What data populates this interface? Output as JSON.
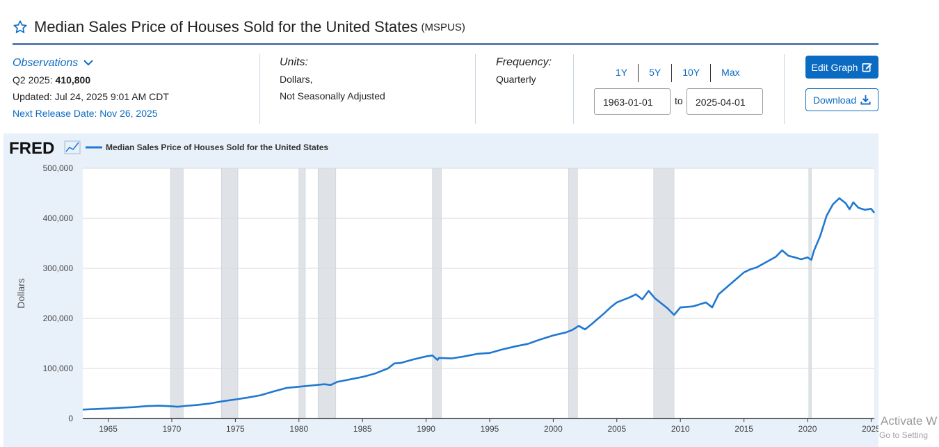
{
  "header": {
    "title": "Median Sales Price of Houses Sold for the United States",
    "series_code": "(MSPUS)"
  },
  "observations": {
    "label": "Observations",
    "period": "Q2 2025:",
    "value": "410,800",
    "updated": "Updated: Jul 24, 2025 9:01 AM CDT",
    "next_release": "Next Release Date: Nov 26, 2025"
  },
  "units": {
    "label": "Units:",
    "line1": "Dollars,",
    "line2": "Not Seasonally Adjusted"
  },
  "frequency": {
    "label": "Frequency:",
    "value": "Quarterly"
  },
  "range": {
    "links": [
      "1Y",
      "5Y",
      "10Y",
      "Max"
    ],
    "start": "1963-01-01",
    "to_label": "to",
    "end": "2025-04-01"
  },
  "buttons": {
    "edit_graph": "Edit Graph",
    "download": "Download"
  },
  "watermark": {
    "line1": "Activate W",
    "line2": "Go to Setting"
  },
  "colors": {
    "line": "#1f78d1",
    "recession": "#dfe3e8",
    "accent": "#0b6bc2"
  },
  "chart_data": {
    "type": "line",
    "logo": "FRED",
    "title": "Median Sales Price of Houses Sold for the United States",
    "legend": [
      {
        "name": "Median Sales Price of Houses Sold for the United States",
        "color": "#1f78d1"
      }
    ],
    "xlabel": "",
    "ylabel": "Dollars",
    "xlim": [
      1963.0,
      2025.25
    ],
    "ylim": [
      0,
      500000
    ],
    "x_ticks": [
      1965,
      1970,
      1975,
      1980,
      1985,
      1990,
      1995,
      2000,
      2005,
      2010,
      2015,
      2020,
      2025
    ],
    "y_ticks": [
      0,
      100000,
      200000,
      300000,
      400000,
      500000
    ],
    "y_tick_labels": [
      "0",
      "100,000",
      "200,000",
      "300,000",
      "400,000",
      "500,000"
    ],
    "recessions": [
      [
        1969.9,
        1970.9
      ],
      [
        1973.9,
        1975.2
      ],
      [
        1980.0,
        1980.5
      ],
      [
        1981.5,
        1982.9
      ],
      [
        1990.5,
        1991.2
      ],
      [
        2001.2,
        2001.9
      ],
      [
        2007.9,
        2009.5
      ],
      [
        2020.1,
        2020.3
      ]
    ],
    "series": [
      {
        "name": "Median Sales Price of Houses Sold for the United States",
        "points": [
          [
            1963.0,
            17800
          ],
          [
            1964.0,
            18900
          ],
          [
            1965.0,
            20000
          ],
          [
            1966.0,
            21400
          ],
          [
            1967.0,
            22700
          ],
          [
            1968.0,
            24700
          ],
          [
            1969.0,
            25600
          ],
          [
            1970.0,
            24500
          ],
          [
            1970.5,
            23500
          ],
          [
            1971.0,
            25000
          ],
          [
            1972.0,
            27000
          ],
          [
            1973.0,
            30000
          ],
          [
            1974.0,
            34500
          ],
          [
            1975.0,
            38000
          ],
          [
            1976.0,
            42000
          ],
          [
            1977.0,
            46500
          ],
          [
            1978.0,
            54000
          ],
          [
            1979.0,
            61000
          ],
          [
            1980.0,
            63500
          ],
          [
            1981.0,
            66000
          ],
          [
            1982.0,
            68500
          ],
          [
            1982.5,
            67000
          ],
          [
            1983.0,
            73000
          ],
          [
            1984.0,
            78000
          ],
          [
            1985.0,
            83000
          ],
          [
            1986.0,
            90000
          ],
          [
            1987.0,
            100000
          ],
          [
            1987.5,
            110000
          ],
          [
            1988.0,
            111000
          ],
          [
            1989.0,
            118000
          ],
          [
            1990.0,
            124000
          ],
          [
            1990.5,
            126000
          ],
          [
            1990.9,
            117000
          ],
          [
            1991.0,
            121000
          ],
          [
            1992.0,
            120000
          ],
          [
            1993.0,
            124000
          ],
          [
            1994.0,
            129000
          ],
          [
            1995.0,
            131000
          ],
          [
            1996.0,
            138000
          ],
          [
            1997.0,
            144000
          ],
          [
            1998.0,
            149000
          ],
          [
            1999.0,
            158000
          ],
          [
            2000.0,
            166000
          ],
          [
            2001.0,
            172000
          ],
          [
            2001.5,
            177000
          ],
          [
            2002.0,
            185000
          ],
          [
            2002.5,
            178000
          ],
          [
            2003.0,
            188000
          ],
          [
            2004.0,
            210000
          ],
          [
            2004.5,
            222000
          ],
          [
            2005.0,
            232000
          ],
          [
            2006.0,
            242000
          ],
          [
            2006.5,
            248000
          ],
          [
            2007.0,
            238000
          ],
          [
            2007.5,
            255000
          ],
          [
            2008.0,
            240000
          ],
          [
            2008.5,
            230000
          ],
          [
            2009.0,
            220000
          ],
          [
            2009.5,
            207000
          ],
          [
            2010.0,
            222000
          ],
          [
            2011.0,
            224000
          ],
          [
            2012.0,
            232000
          ],
          [
            2012.5,
            222000
          ],
          [
            2013.0,
            248000
          ],
          [
            2014.0,
            270000
          ],
          [
            2015.0,
            292000
          ],
          [
            2015.5,
            298000
          ],
          [
            2016.0,
            302000
          ],
          [
            2017.0,
            316000
          ],
          [
            2017.5,
            323000
          ],
          [
            2018.0,
            336000
          ],
          [
            2018.5,
            325000
          ],
          [
            2019.0,
            322000
          ],
          [
            2019.5,
            318000
          ],
          [
            2020.0,
            322000
          ],
          [
            2020.3,
            317000
          ],
          [
            2020.5,
            335000
          ],
          [
            2021.0,
            365000
          ],
          [
            2021.5,
            405000
          ],
          [
            2022.0,
            428000
          ],
          [
            2022.5,
            440000
          ],
          [
            2023.0,
            430000
          ],
          [
            2023.3,
            418000
          ],
          [
            2023.6,
            432000
          ],
          [
            2024.0,
            421000
          ],
          [
            2024.5,
            417000
          ],
          [
            2025.0,
            419000
          ],
          [
            2025.25,
            410800
          ]
        ]
      }
    ]
  }
}
